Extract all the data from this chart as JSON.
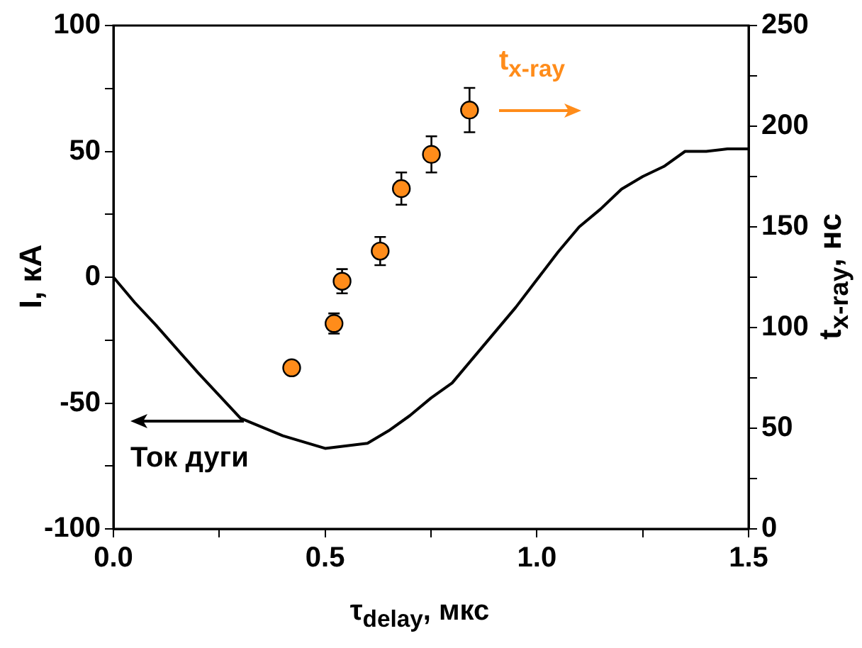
{
  "chart_data": {
    "type": "line",
    "xlabel": "τ$_{delay}$, мкс",
    "ylabel": "I, кА",
    "y2label": "t$_{x-ray}$, нс",
    "annotations": [
      "Ток дуги",
      "t$_{x-ray}$"
    ],
    "xlim": [
      0,
      1.5
    ],
    "xticks": [
      {
        "value": 0,
        "label": "0.0"
      },
      {
        "value": 0.25,
        "label": null
      },
      {
        "value": 0.5,
        "label": "0.5"
      },
      {
        "value": 0.75,
        "label": null
      },
      {
        "value": 1,
        "label": "1.0"
      },
      {
        "value": 1.25,
        "label": null
      },
      1.5
    ],
    "ylim": [
      -100,
      100
    ],
    "yticks": [
      -100,
      {
        "value": -75,
        "label": null
      },
      -50,
      {
        "value": -25,
        "label": null
      },
      0,
      {
        "value": 25,
        "label": null
      },
      50,
      {
        "value": 75,
        "label": null
      },
      100
    ],
    "y2lim": [
      0,
      250
    ],
    "y2ticks": [
      0,
      {
        "value": 25,
        "label": null
      },
      50,
      {
        "value": 75,
        "label": null
      },
      100,
      {
        "value": 125,
        "label": null
      },
      150,
      {
        "value": 175,
        "label": null
      },
      200,
      {
        "value": 225,
        "label": null
      },
      250
    ],
    "grid": false,
    "legend": false,
    "series": [
      {
        "color": "#000000",
        "marker": "none",
        "line_style": "solid",
        "x": [
          0,
          0.05,
          0.1,
          0.2,
          0.3,
          0.4,
          0.5,
          0.6,
          0.65,
          0.7,
          0.75,
          0.8,
          0.85,
          0.9,
          0.95,
          1.0,
          1.05,
          1.1,
          1.15,
          1.2,
          1.25,
          1.3,
          1.35,
          1.4,
          1.45,
          1.5
        ],
        "values": [
          0,
          -10,
          -19,
          -38,
          -56,
          -63,
          -68,
          -66,
          -61,
          -55,
          -48,
          -42,
          -32,
          -22,
          -12,
          -1,
          10,
          20,
          27,
          35,
          40,
          44,
          50,
          50,
          51,
          51
        ]
      },
      {
        "type": "scatter",
        "axis": "y2",
        "color": "#ff8c1a",
        "marker": "circle",
        "x": [
          0.421,
          0.521,
          0.54,
          0.63,
          0.68,
          0.751,
          0.841
        ],
        "values": [
          80,
          102,
          123,
          138,
          169,
          186,
          208
        ],
        "errors": [
          null,
          5,
          6,
          7,
          8,
          9,
          11
        ]
      }
    ]
  }
}
